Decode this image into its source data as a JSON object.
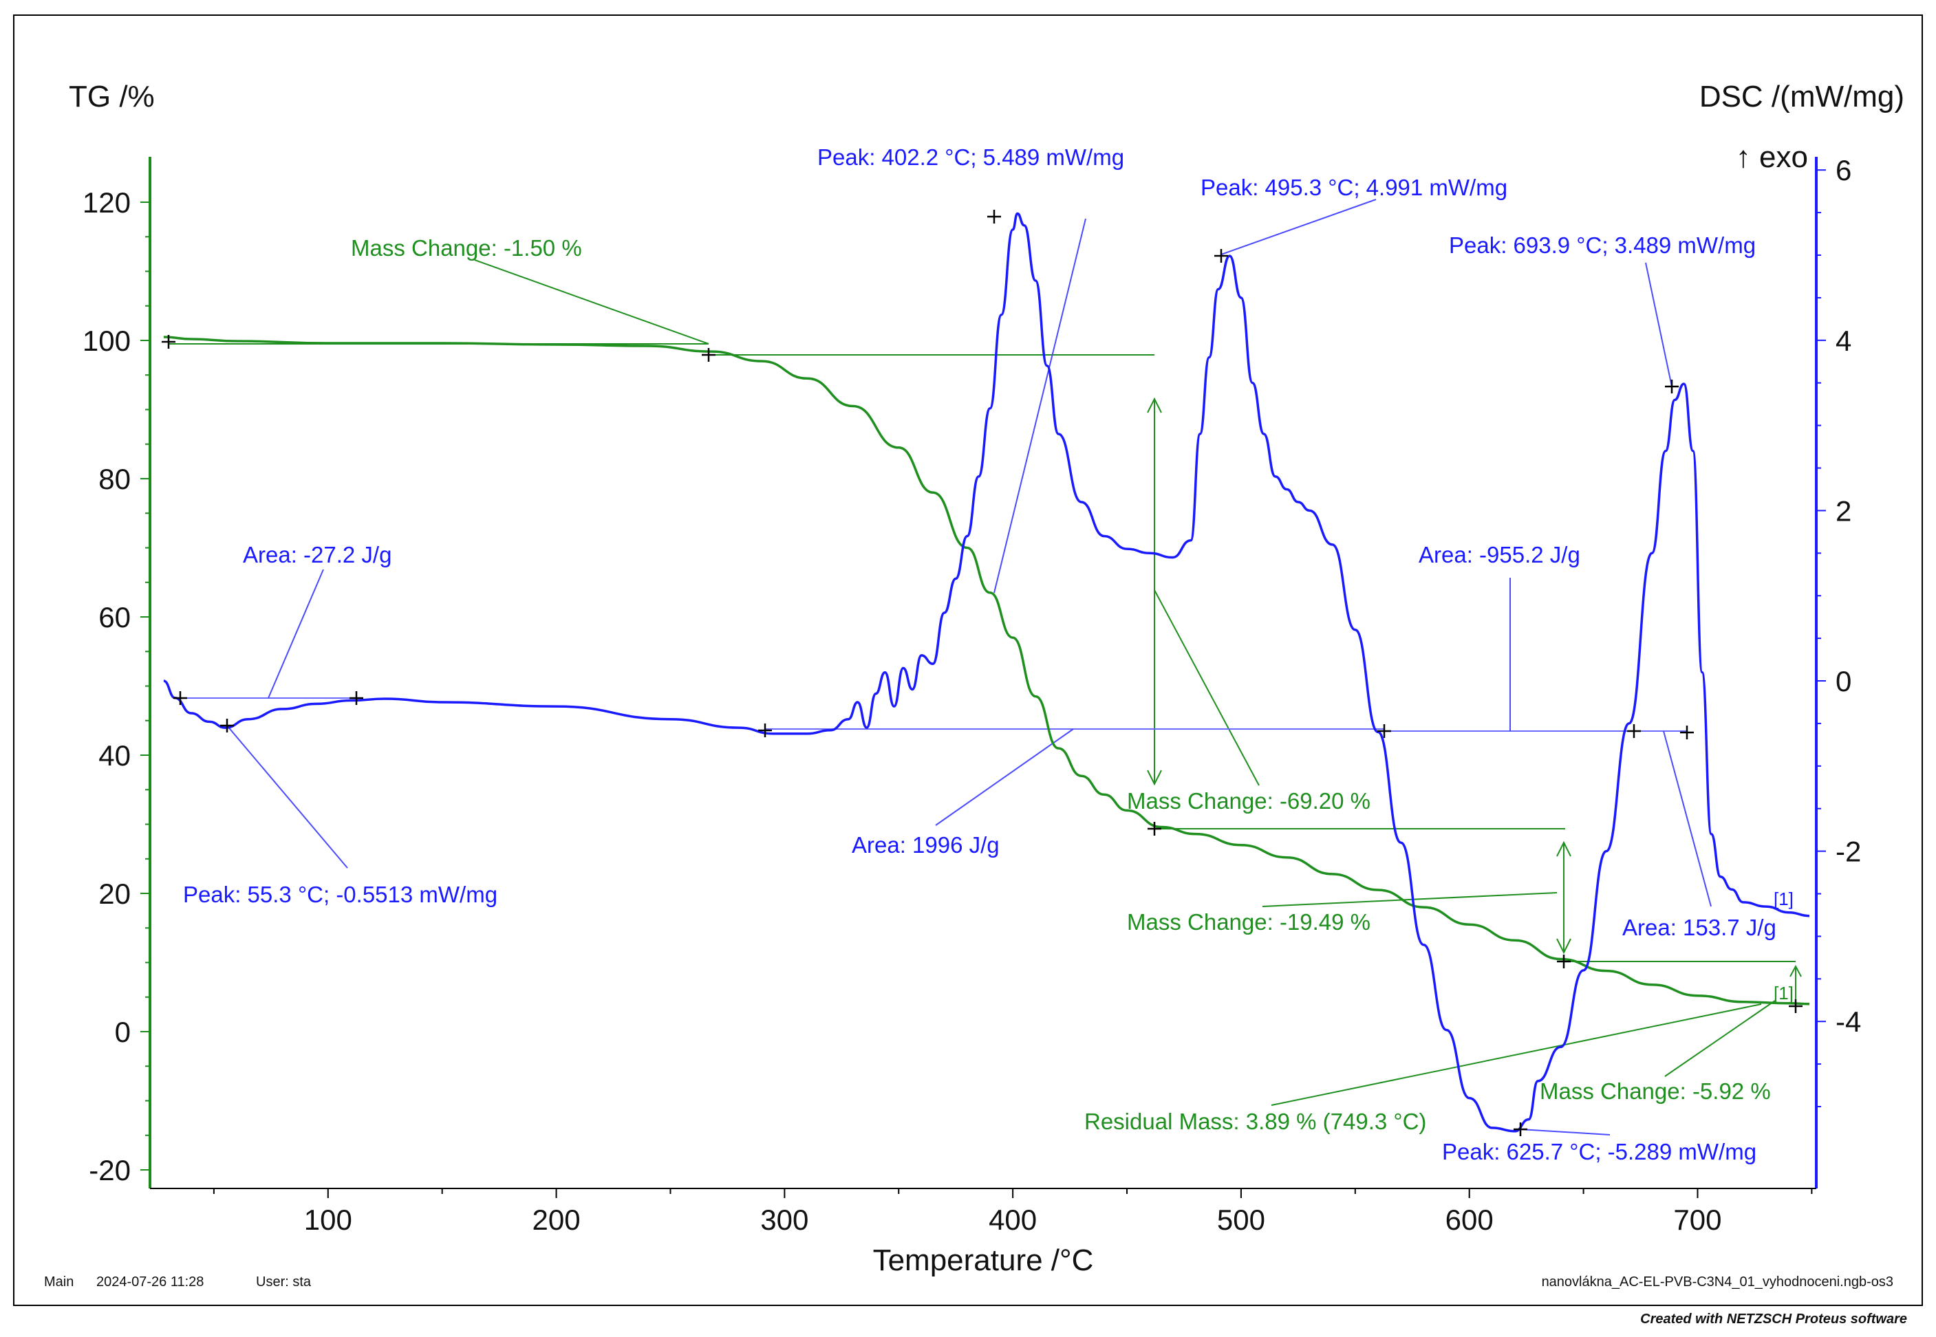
{
  "chart_data": {
    "type": "line",
    "xlabel": "Temperature /°C",
    "x_ticks": [
      100,
      200,
      300,
      400,
      500,
      600,
      700
    ],
    "xlim": [
      22,
      752
    ],
    "y_left": {
      "label": "TG /%",
      "ticks": [
        -20,
        0,
        20,
        40,
        60,
        80,
        100,
        120
      ],
      "lim": [
        -22,
        127
      ]
    },
    "y_right": {
      "label": "DSC /(mW/mg)",
      "ticks": [
        -4,
        -2,
        0,
        2,
        4,
        6
      ],
      "lim": [
        -5.8,
        6.2
      ],
      "exo_label": "↑ exo"
    },
    "series": [
      {
        "name": "TG",
        "color": "#1f8f1f",
        "axis": "left",
        "x": [
          28,
          40,
          60,
          100,
          150,
          200,
          240,
          268,
          290,
          310,
          330,
          350,
          365,
          380,
          390,
          400,
          410,
          420,
          430,
          440,
          450,
          465,
          480,
          500,
          520,
          540,
          560,
          580,
          600,
          620,
          640,
          660,
          680,
          700,
          720,
          740,
          749
        ],
        "y": [
          100.5,
          100.2,
          99.9,
          99.6,
          99.6,
          99.4,
          99.2,
          98.4,
          97.0,
          94.5,
          90.5,
          84.5,
          78.0,
          70.0,
          63.5,
          57.0,
          48.5,
          41.0,
          37.0,
          34.3,
          32.0,
          29.6,
          28.6,
          27.0,
          25.2,
          22.8,
          20.5,
          18.0,
          15.5,
          13.2,
          10.5,
          8.8,
          6.8,
          5.2,
          4.3,
          4.1,
          4.0
        ]
      },
      {
        "name": "DSC",
        "color": "#1a1aff",
        "axis": "right",
        "x": [
          28,
          33,
          40,
          48,
          55,
          65,
          80,
          95,
          110,
          125,
          150,
          200,
          250,
          280,
          295,
          310,
          320,
          328,
          332,
          336,
          340,
          344,
          348,
          352,
          356,
          360,
          365,
          370,
          375,
          380,
          385,
          390,
          395,
          400,
          402,
          405,
          410,
          415,
          420,
          430,
          440,
          450,
          460,
          470,
          478,
          482,
          486,
          490,
          495,
          500,
          505,
          510,
          515,
          520,
          525,
          530,
          540,
          550,
          560,
          570,
          580,
          590,
          600,
          610,
          620,
          626,
          630,
          640,
          650,
          660,
          670,
          680,
          686,
          690,
          694,
          698,
          702,
          706,
          710,
          715,
          720,
          730,
          740,
          749
        ],
        "y": [
          0.0,
          -0.2,
          -0.38,
          -0.48,
          -0.55,
          -0.45,
          -0.33,
          -0.27,
          -0.23,
          -0.21,
          -0.25,
          -0.3,
          -0.45,
          -0.55,
          -0.62,
          -0.62,
          -0.58,
          -0.45,
          -0.25,
          -0.55,
          -0.15,
          0.1,
          -0.3,
          0.15,
          -0.1,
          0.3,
          0.2,
          0.8,
          1.2,
          1.7,
          2.4,
          3.2,
          4.3,
          5.3,
          5.489,
          5.35,
          4.7,
          3.7,
          2.9,
          2.1,
          1.7,
          1.55,
          1.5,
          1.45,
          1.65,
          2.9,
          3.8,
          4.6,
          4.991,
          4.5,
          3.5,
          2.9,
          2.4,
          2.25,
          2.1,
          2.0,
          1.6,
          0.6,
          -0.6,
          -1.9,
          -3.1,
          -4.1,
          -4.9,
          -5.25,
          -5.289,
          -5.15,
          -4.7,
          -4.3,
          -3.4,
          -2.0,
          -0.5,
          1.5,
          2.7,
          3.3,
          3.489,
          2.7,
          0.1,
          -1.8,
          -2.3,
          -2.45,
          -2.6,
          -2.65,
          -2.72,
          -2.76
        ]
      }
    ],
    "annotations": {
      "mass_change_1": "Mass Change: -1.50 %",
      "mass_change_2": "Mass Change: -69.20 %",
      "mass_change_3": "Mass Change: -19.49 %",
      "mass_change_4": "Mass Change: -5.92 %",
      "residual_mass": "Residual Mass: 3.89 % (749.3 °C)",
      "peak_1": "Peak: 402.2 °C; 5.489 mW/mg",
      "peak_2": "Peak: 495.3 °C; 4.991 mW/mg",
      "peak_3": "Peak: 693.9 °C; 3.489 mW/mg",
      "peak_4": "Peak: 55.3 °C; -0.5513 mW/mg",
      "peak_5": "Peak: 625.7 °C; -5.289 mW/mg",
      "area_1": "Area: -27.2 J/g",
      "area_2": "Area: 1996 J/g",
      "area_3": "Area: -955.2 J/g",
      "area_4": "Area: 153.7 J/g",
      "curve_label_dsc": "[1]",
      "curve_label_tg": "[1]"
    }
  },
  "footer": {
    "segment": "Main",
    "datetime": "2024-07-26 11:28",
    "user": "User: sta",
    "filename": "nanovlákna_AC-EL-PVB-C3N4_01_vyhodnoceni.ngb-os3",
    "credit": "Created with NETZSCH Proteus software"
  }
}
